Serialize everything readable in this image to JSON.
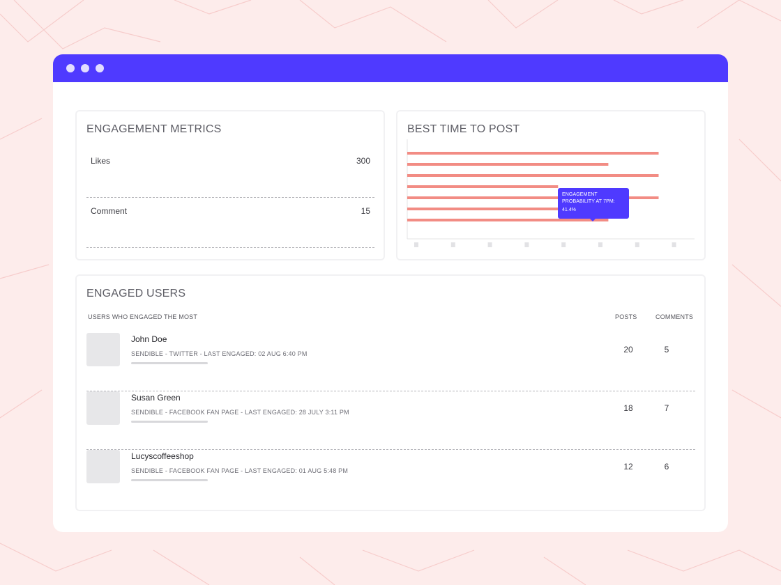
{
  "window": {
    "controls": [
      "dot",
      "dot",
      "dot"
    ],
    "accent": "#4f3aff"
  },
  "metrics": {
    "title": "ENGAGEMENT METRICS",
    "rows": [
      {
        "label": "Likes",
        "value": "300"
      },
      {
        "label": "Comment",
        "value": "15"
      }
    ]
  },
  "best_time": {
    "title": "BEST TIME TO POST",
    "tooltip_label": "ENGAGEMENT PROBABILITY AT 7PM:",
    "tooltip_value": "41.4%"
  },
  "chart_data": {
    "type": "bar",
    "orientation": "horizontal",
    "values": [
      7,
      5.6,
      7,
      4.2,
      7,
      4.2,
      5.6
    ],
    "bar_color": "#f28c84",
    "xlim": [
      0,
      8
    ],
    "x_tick_count": 8,
    "grid": false
  },
  "users": {
    "title": "ENGAGED USERS",
    "headers": {
      "users": "USERS WHO ENGAGED THE MOST",
      "posts": "POSTS",
      "comments": "COMMENTS"
    },
    "rows": [
      {
        "name": "John Doe",
        "meta": "SENDIBLE - TWITTER - LAST ENGAGED: 02 AUG 6:40 PM",
        "posts": "20",
        "comments": "5"
      },
      {
        "name": "Susan Green",
        "meta": "SENDIBLE - FACEBOOK FAN PAGE - LAST ENGAGED: 28 JULY 3:11 PM",
        "posts": "18",
        "comments": "7"
      },
      {
        "name": "Lucyscoffeeshop",
        "meta": "SENDIBLE - FACEBOOK FAN PAGE - LAST ENGAGED: 01 AUG 5:48 PM",
        "posts": "12",
        "comments": "6"
      }
    ]
  }
}
